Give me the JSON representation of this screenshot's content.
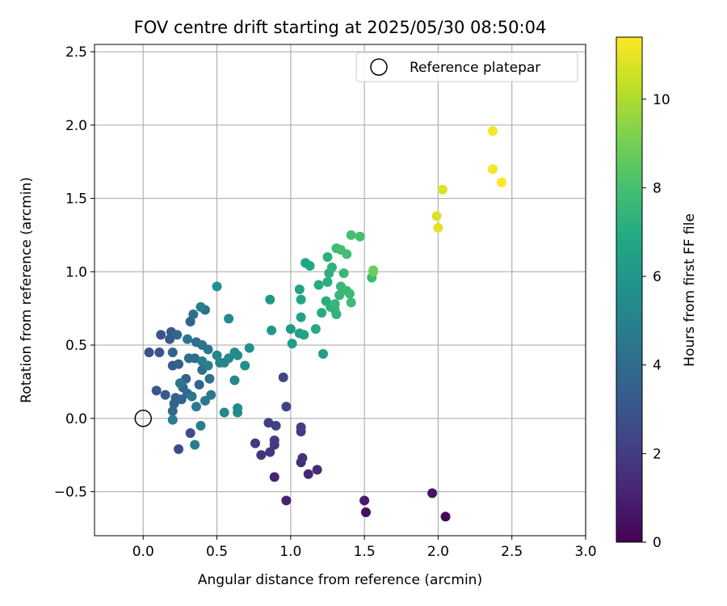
{
  "chart_data": {
    "type": "scatter",
    "title": "FOV centre drift starting at 2025/05/30 08:50:04",
    "xlabel": "Angular distance from reference (arcmin)",
    "ylabel": "Rotation from reference (arcmin)",
    "xlim": [
      -0.33,
      3.0
    ],
    "ylim": [
      -0.8,
      2.55
    ],
    "xticks": [
      0.0,
      0.5,
      1.0,
      1.5,
      2.0,
      2.5,
      3.0
    ],
    "xtick_labels": [
      "0.0",
      "0.5",
      "1.0",
      "1.5",
      "2.0",
      "2.5",
      "3.0"
    ],
    "yticks": [
      -0.5,
      0.0,
      0.5,
      1.0,
      1.5,
      2.0,
      2.5
    ],
    "ytick_labels": [
      "−0.5",
      "0.0",
      "0.5",
      "1.0",
      "1.5",
      "2.0",
      "2.5"
    ],
    "grid": true,
    "legend": {
      "position": "top-right",
      "entries": [
        {
          "label": "Reference platepar",
          "marker": "open-circle"
        }
      ]
    },
    "reference_point": {
      "label": "Reference platepar",
      "x": 0.0,
      "y": 0.0
    },
    "colorbar": {
      "label": "Hours from first FF file",
      "colormap": "viridis",
      "range": [
        0,
        11.4
      ],
      "ticks": [
        0,
        2,
        4,
        6,
        8,
        10
      ],
      "tick_labels": [
        "0",
        "2",
        "4",
        "6",
        "8",
        "10"
      ]
    },
    "series": [
      {
        "point_fields": [
          "x",
          "y",
          "hours"
        ],
        "points": [
          [
            2.05,
            -0.67,
            0.2
          ],
          [
            1.51,
            -0.64,
            0.4
          ],
          [
            1.96,
            -0.51,
            0.6
          ],
          [
            1.5,
            -0.56,
            0.8
          ],
          [
            0.97,
            -0.56,
            1.0
          ],
          [
            0.89,
            -0.4,
            1.1
          ],
          [
            1.12,
            -0.38,
            1.3
          ],
          [
            1.18,
            -0.35,
            1.4
          ],
          [
            1.07,
            -0.3,
            1.5
          ],
          [
            1.08,
            -0.27,
            1.6
          ],
          [
            0.8,
            -0.25,
            1.7
          ],
          [
            0.86,
            -0.23,
            1.8
          ],
          [
            0.76,
            -0.17,
            1.9
          ],
          [
            0.89,
            -0.18,
            1.9
          ],
          [
            0.89,
            -0.15,
            2.0
          ],
          [
            1.07,
            -0.09,
            2.0
          ],
          [
            1.07,
            -0.06,
            2.1
          ],
          [
            0.85,
            -0.03,
            2.1
          ],
          [
            0.9,
            -0.05,
            2.2
          ],
          [
            0.97,
            0.08,
            2.2
          ],
          [
            0.95,
            0.28,
            2.3
          ],
          [
            0.24,
            -0.21,
            2.5
          ],
          [
            0.32,
            -0.1,
            2.7
          ],
          [
            0.04,
            0.45,
            2.8
          ],
          [
            0.11,
            0.45,
            2.9
          ],
          [
            0.12,
            0.57,
            3.0
          ],
          [
            0.09,
            0.19,
            3.1
          ],
          [
            0.15,
            0.16,
            3.2
          ],
          [
            0.18,
            0.54,
            3.2
          ],
          [
            0.19,
            0.59,
            3.3
          ],
          [
            0.2,
            0.36,
            3.3
          ],
          [
            0.22,
            0.14,
            3.4
          ],
          [
            0.24,
            0.37,
            3.4
          ],
          [
            0.26,
            0.13,
            3.5
          ],
          [
            0.29,
            0.27,
            3.5
          ],
          [
            0.32,
            0.66,
            3.6
          ],
          [
            0.38,
            0.23,
            3.6
          ],
          [
            0.21,
            0.1,
            3.7
          ],
          [
            0.2,
            0.45,
            3.7
          ],
          [
            0.23,
            0.57,
            3.8
          ],
          [
            0.27,
            0.21,
            3.8
          ],
          [
            0.3,
            0.17,
            3.9
          ],
          [
            0.2,
            0.05,
            3.9
          ],
          [
            0.31,
            0.41,
            4.0
          ],
          [
            0.35,
            0.41,
            4.0
          ],
          [
            0.4,
            0.33,
            4.1
          ],
          [
            0.45,
            0.27,
            4.1
          ],
          [
            0.34,
            0.71,
            4.2
          ],
          [
            0.42,
            0.74,
            4.2
          ],
          [
            0.36,
            0.52,
            4.3
          ],
          [
            0.4,
            0.5,
            4.3
          ],
          [
            0.44,
            0.47,
            4.4
          ],
          [
            0.3,
            0.54,
            4.4
          ],
          [
            0.25,
            0.24,
            4.5
          ],
          [
            0.33,
            0.15,
            4.5
          ],
          [
            0.42,
            0.12,
            4.6
          ],
          [
            0.46,
            0.16,
            4.6
          ],
          [
            0.36,
            0.08,
            4.7
          ],
          [
            0.2,
            -0.01,
            4.7
          ],
          [
            0.35,
            -0.18,
            4.8
          ],
          [
            0.39,
            -0.05,
            4.8
          ],
          [
            0.39,
            0.76,
            4.9
          ],
          [
            0.4,
            0.39,
            4.9
          ],
          [
            0.44,
            0.36,
            5.0
          ],
          [
            0.52,
            0.38,
            5.0
          ],
          [
            0.5,
            0.43,
            5.1
          ],
          [
            0.55,
            0.38,
            5.1
          ],
          [
            0.58,
            0.41,
            5.2
          ],
          [
            0.62,
            0.26,
            5.2
          ],
          [
            0.55,
            0.04,
            5.3
          ],
          [
            0.58,
            0.68,
            5.3
          ],
          [
            0.64,
            0.07,
            5.4
          ],
          [
            0.64,
            0.04,
            5.4
          ],
          [
            0.62,
            0.45,
            5.5
          ],
          [
            0.64,
            0.43,
            5.5
          ],
          [
            0.69,
            0.36,
            5.6
          ],
          [
            0.72,
            0.48,
            5.6
          ],
          [
            0.5,
            0.9,
            5.7
          ],
          [
            0.86,
            0.81,
            6.0
          ],
          [
            0.87,
            0.6,
            6.1
          ],
          [
            1.0,
            0.61,
            6.2
          ],
          [
            1.01,
            0.51,
            6.3
          ],
          [
            1.06,
            0.58,
            6.4
          ],
          [
            1.07,
            0.69,
            6.5
          ],
          [
            1.09,
            0.57,
            6.6
          ],
          [
            1.06,
            0.88,
            6.6
          ],
          [
            1.07,
            0.81,
            6.7
          ],
          [
            1.1,
            1.06,
            6.7
          ],
          [
            1.13,
            1.04,
            6.8
          ],
          [
            1.17,
            0.61,
            6.9
          ],
          [
            1.19,
            0.91,
            7.0
          ],
          [
            1.21,
            0.72,
            7.0
          ],
          [
            1.24,
            0.8,
            7.1
          ],
          [
            1.25,
            0.93,
            7.1
          ],
          [
            1.25,
            1.1,
            7.2
          ],
          [
            1.26,
            0.99,
            7.2
          ],
          [
            1.28,
            1.03,
            7.3
          ],
          [
            1.27,
            0.76,
            7.3
          ],
          [
            1.3,
            0.74,
            7.4
          ],
          [
            1.31,
            0.71,
            7.4
          ],
          [
            1.3,
            0.78,
            7.5
          ],
          [
            1.33,
            0.84,
            7.5
          ],
          [
            1.34,
            0.9,
            7.6
          ],
          [
            1.36,
            0.99,
            7.6
          ],
          [
            1.38,
            0.87,
            7.7
          ],
          [
            1.4,
            0.85,
            7.7
          ],
          [
            1.41,
            0.79,
            7.8
          ],
          [
            1.31,
            1.16,
            7.8
          ],
          [
            1.34,
            1.15,
            7.9
          ],
          [
            1.38,
            1.12,
            7.9
          ],
          [
            1.41,
            1.25,
            8.0
          ],
          [
            1.47,
            1.24,
            8.0
          ],
          [
            1.22,
            0.44,
            6.4
          ],
          [
            1.55,
            0.96,
            7.7
          ],
          [
            1.56,
            1.0,
            9.0
          ],
          [
            1.56,
            1.01,
            8.8
          ],
          [
            1.99,
            1.38,
            10.8
          ],
          [
            2.0,
            1.3,
            10.9
          ],
          [
            2.03,
            1.56,
            10.8
          ],
          [
            2.37,
            1.96,
            11.2
          ],
          [
            2.37,
            1.7,
            11.3
          ],
          [
            2.43,
            1.61,
            11.4
          ]
        ]
      }
    ]
  }
}
